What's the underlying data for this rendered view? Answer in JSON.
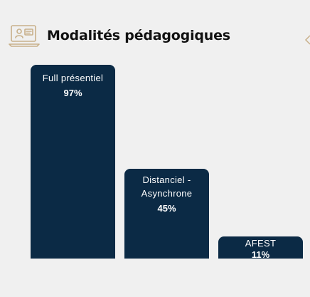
{
  "header": {
    "title": "Modalités pédagogiques",
    "icon": "elearning-icon"
  },
  "colors": {
    "bar": "#0b2a45",
    "icon": "#c8b08a",
    "background": "#f0f0f0"
  },
  "chart_data": {
    "type": "bar",
    "title": "Modalités pédagogiques",
    "categories": [
      "Full présentiel",
      "Distanciel - Asynchrone",
      "AFEST"
    ],
    "label_lines": [
      [
        "Full présentiel"
      ],
      [
        "Distanciel -",
        "Asynchrone"
      ],
      [
        "AFEST"
      ]
    ],
    "values": [
      97,
      45,
      11
    ],
    "value_labels": [
      "97%",
      "45%",
      "11%"
    ],
    "ylim": [
      0,
      100
    ],
    "grid": false,
    "legend": "none"
  }
}
